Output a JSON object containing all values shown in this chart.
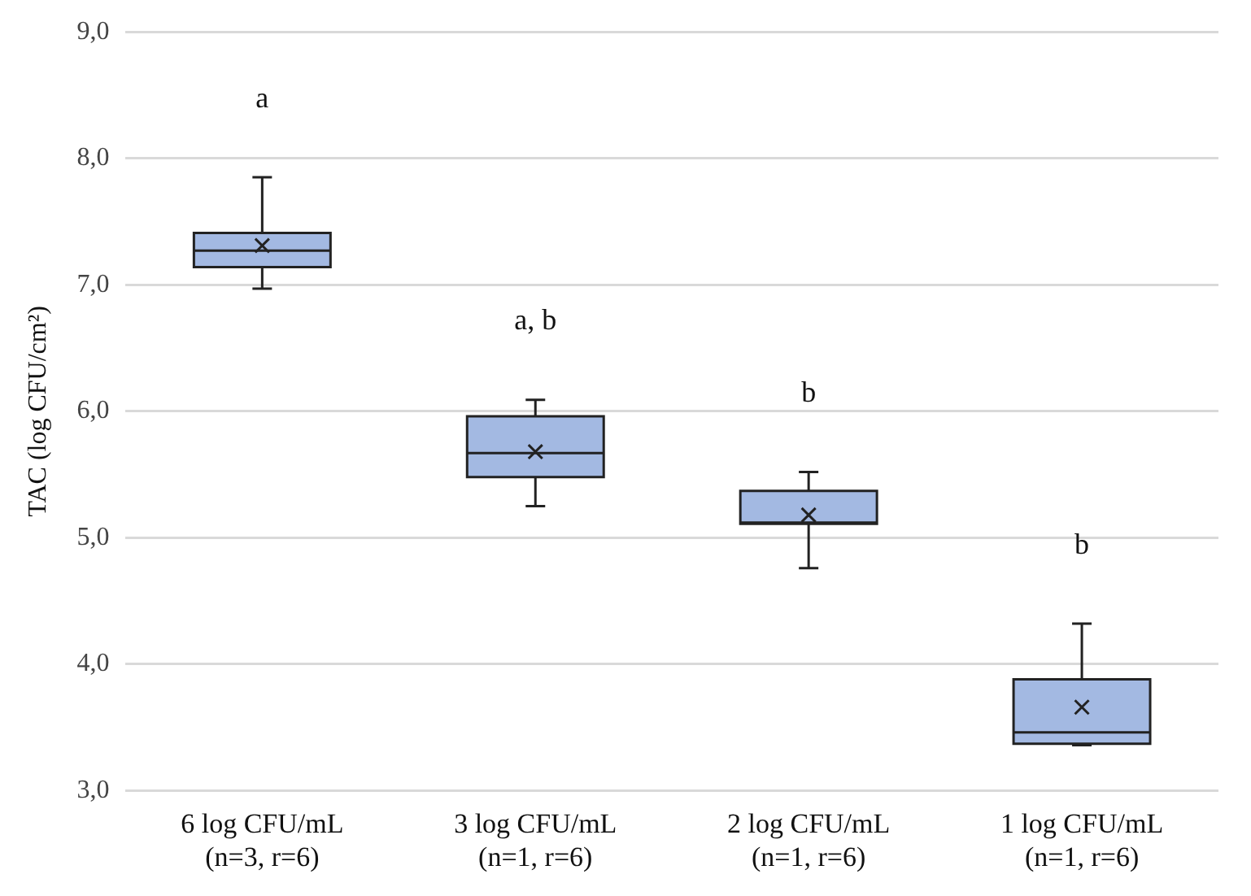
{
  "chart_data": {
    "type": "box",
    "ylabel": "TAC (log CFU/cm²)",
    "categories": [
      "6 log CFU/mL (n=3, r=6)",
      "3 log CFU/mL (n=1, r=6)",
      "2 log CFU/mL (n=1, r=6)",
      "1 log CFU/mL (n=1, r=6)"
    ],
    "series": [
      {
        "color": "#a3b9e2",
        "boxes": [
          {
            "low": 6.97,
            "q1": 7.14,
            "median": 7.27,
            "q3": 7.41,
            "high": 7.85,
            "mean": 7.31
          },
          {
            "low": 5.25,
            "q1": 5.48,
            "median": 5.67,
            "q3": 5.96,
            "high": 6.09,
            "mean": 5.68
          },
          {
            "low": 4.76,
            "q1": 5.11,
            "median": 5.12,
            "q3": 5.37,
            "high": 5.52,
            "mean": 5.18
          },
          {
            "low": 3.36,
            "q1": 3.37,
            "median": 3.46,
            "q3": 3.88,
            "high": 4.32,
            "mean": 3.66
          }
        ]
      }
    ],
    "ylim": [
      3,
      9
    ],
    "yticks": [
      {
        "value": 3,
        "label": "3,0"
      },
      {
        "value": 4,
        "label": "4,0"
      },
      {
        "value": 5,
        "label": "5,0"
      },
      {
        "value": 6,
        "label": "6,0"
      },
      {
        "value": 7,
        "label": "7,0"
      },
      {
        "value": 8,
        "label": "8,0"
      },
      {
        "value": 9,
        "label": "9,0"
      }
    ],
    "grid": "y",
    "marker": "cross",
    "annotations": [
      "a",
      "a, b",
      "b",
      "b"
    ]
  }
}
